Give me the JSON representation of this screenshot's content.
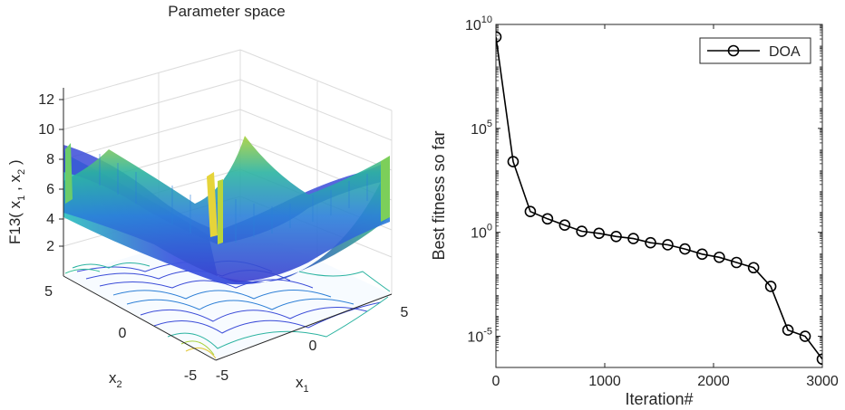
{
  "chart_data": [
    {
      "type": "surface3d",
      "title": "Parameter space",
      "zlabel": {
        "main": "F13( x",
        "sub1": "1",
        "sep": " ,  x",
        "sub2": "2",
        "close": " )"
      },
      "xlabel": {
        "main": "x",
        "sub": "1"
      },
      "ylabel": {
        "main": "x",
        "sub": "2"
      },
      "xlim": [
        -5,
        5
      ],
      "ylim": [
        -5,
        5
      ],
      "zticks": [
        "12",
        "10",
        "8",
        "6",
        "4",
        "2"
      ],
      "xticks": [
        "-5",
        "0",
        "5"
      ],
      "yticks": [
        "5",
        "0",
        "-5"
      ]
    },
    {
      "type": "line",
      "yscale": "log",
      "xlabel": "Iteration#",
      "ylabel": "Best fitness so far",
      "xlim": [
        0,
        3000
      ],
      "ylim_exp": [
        -6.5,
        10
      ],
      "xticks": [
        "0",
        "1000",
        "2000",
        "3000"
      ],
      "xtick_values": [
        0,
        1000,
        2000,
        3000
      ],
      "yticks": [
        {
          "base": "10",
          "exp": "10",
          "v": 10
        },
        {
          "base": "10",
          "exp": "5",
          "v": 5
        },
        {
          "base": "10",
          "exp": "0",
          "v": 0
        },
        {
          "base": "10",
          "exp": "-5",
          "v": -5
        }
      ],
      "legend": {
        "label": "DOA",
        "position": "top-right"
      },
      "series": [
        {
          "name": "DOA",
          "x": [
            0,
            158,
            316,
            474,
            632,
            789,
            947,
            1105,
            1263,
            1421,
            1579,
            1737,
            1895,
            2053,
            2211,
            2368,
            2526,
            2684,
            2842,
            3000
          ],
          "log10_y": [
            9.4,
            3.4,
            1.0,
            0.65,
            0.35,
            0.05,
            -0.05,
            -0.2,
            -0.3,
            -0.5,
            -0.6,
            -0.8,
            -1.05,
            -1.2,
            -1.45,
            -1.7,
            -2.6,
            -4.7,
            -5.0,
            -6.1
          ]
        }
      ]
    }
  ]
}
